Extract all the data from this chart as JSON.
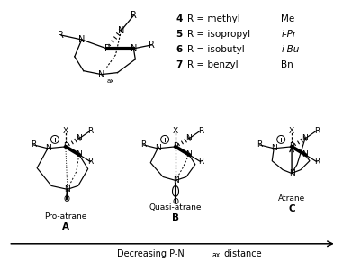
{
  "bg_color": "#ffffff",
  "compound_entries": [
    {
      "num": "4",
      "name": "methyl",
      "abbr": "Me"
    },
    {
      "num": "5",
      "name": "isopropyl",
      "abbr": "i-Pr"
    },
    {
      "num": "6",
      "name": "isobutyl",
      "abbr": "i-Bu"
    },
    {
      "num": "7",
      "name": "benzyl",
      "abbr": "Bn"
    }
  ],
  "bottom_labels": [
    {
      "name": "Pro-atrane",
      "letter": "A"
    },
    {
      "name": "Quasi-atrane",
      "letter": "B"
    },
    {
      "name": "Atrane",
      "letter": "C"
    }
  ],
  "arrow_label": "Decreasing P-N",
  "arrow_sub": "ax",
  "arrow_label2": " distance"
}
